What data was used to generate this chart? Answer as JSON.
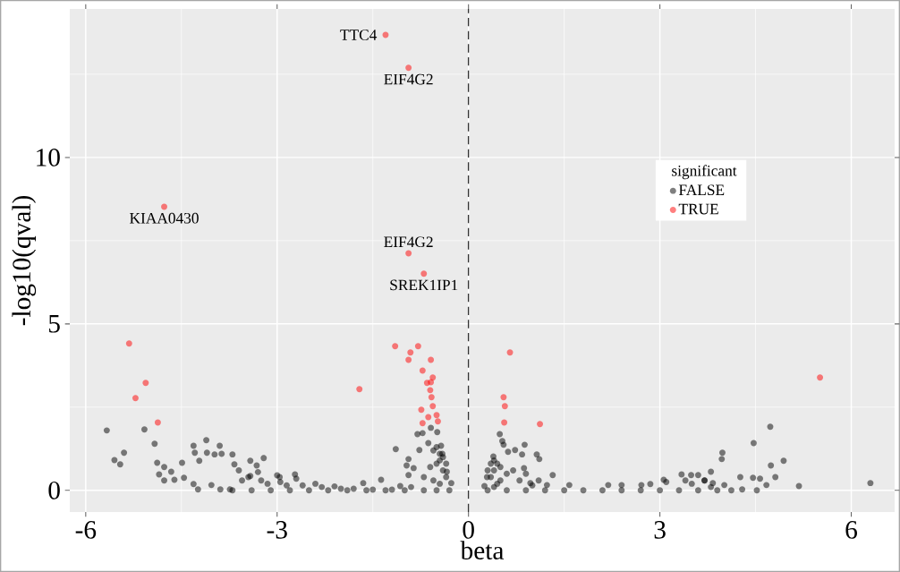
{
  "chart_data": {
    "type": "scatter",
    "xlabel": "beta",
    "ylabel": "-log10(qval)",
    "legend_title": "significant",
    "xlim": [
      -6.25,
      6.68
    ],
    "ylim": [
      -0.65,
      14.46
    ],
    "xticks": [
      -6,
      -3,
      0,
      3,
      6
    ],
    "yticks": [
      0,
      5,
      10
    ],
    "grid": true,
    "legend": "right",
    "marker": "circle",
    "ref_lines": [
      {
        "axis": "x",
        "value": 0,
        "line_style": "dashed",
        "color": "#333333"
      }
    ],
    "annotations": [
      {
        "text": "TTC4",
        "x": -1.3,
        "y": 13.68
      },
      {
        "text": "EIF4G2",
        "x": -0.94,
        "y": 12.69
      },
      {
        "text": "KIAA0430",
        "x": -4.77,
        "y": 8.52
      },
      {
        "text": "EIF4G2",
        "x": -0.94,
        "y": 7.12
      },
      {
        "text": "SREK1IP1",
        "x": -0.7,
        "y": 6.51
      }
    ],
    "series": [
      {
        "name": "FALSE",
        "color": "#000000",
        "x": [
          -5.67,
          -5.55,
          -5.46,
          -5.4,
          -5.08,
          -4.92,
          -4.88,
          -4.77,
          -4.85,
          -4.77,
          -4.66,
          -4.61,
          -4.49,
          -4.46,
          -4.31,
          -4.11,
          -3.9,
          -4.29,
          -4.22,
          -4.1,
          -3.98,
          -3.87,
          -3.7,
          -3.67,
          -4.31,
          -4.24,
          -3.89,
          -4.03,
          -3.42,
          -3.21,
          -3.32,
          -2.96,
          -2.72,
          -3.42,
          -3.74,
          -3.6,
          -3.3,
          -3.0,
          -2.7,
          -2.4,
          -2.1,
          -1.8,
          -1.5,
          -1.2,
          -0.9,
          -3.7,
          -3.4,
          -3.1,
          -2.8,
          -2.5,
          -2.2,
          -1.9,
          -1.6,
          -1.3,
          -1.0,
          -0.7,
          -0.5,
          -0.3,
          -1.65,
          -1.37,
          -1.14,
          -0.8,
          -0.72,
          -0.59,
          -0.49,
          -0.63,
          -0.43,
          -0.77,
          -0.94,
          -0.97,
          -0.94,
          -0.86,
          -0.41,
          -0.34,
          -0.27,
          -1.07,
          -0.35,
          -0.4,
          -0.45,
          -0.5,
          -0.6,
          -0.7,
          0.3,
          0.35,
          0.4,
          0.5,
          0.6,
          0.8,
          1.0,
          0.49,
          0.53,
          0.55,
          0.39,
          0.29,
          0.25,
          0.62,
          0.73,
          0.88,
          0.84,
          0.87,
          1.07,
          1.11,
          1.32,
          0.97,
          1.23,
          1.58,
          2.19,
          2.4,
          2.71,
          2.85,
          3.06,
          3.34,
          3.49,
          3.6,
          3.8,
          3.98,
          3.97,
          3.83,
          4.01,
          4.12,
          4.26,
          4.46,
          4.47,
          4.74,
          4.73,
          4.94,
          4.81,
          4.57,
          4.52,
          4.29,
          5.18,
          6.3,
          4.67,
          0.3,
          0.6,
          0.9,
          1.2,
          1.5,
          1.8,
          2.1,
          2.4,
          2.7,
          3.0,
          3.3,
          3.6,
          3.9,
          3.1,
          3.4,
          3.7,
          -3.55,
          -3.45,
          -3.25,
          -3.15,
          -2.95,
          -2.85,
          -2.6,
          -2.3,
          -2.0,
          -0.55,
          -0.5,
          -0.45,
          -0.4,
          -0.35,
          -0.55,
          -0.45,
          0.35,
          0.4,
          0.45,
          0.5,
          0.45,
          0.4,
          0.7,
          0.9,
          1.1,
          3.5,
          3.7,
          3.8
        ],
        "values": [
          1.8,
          0.91,
          0.78,
          1.13,
          1.83,
          1.4,
          0.83,
          0.7,
          0.48,
          0.3,
          0.56,
          0.32,
          0.83,
          0.38,
          1.34,
          1.51,
          1.34,
          1.13,
          0.89,
          1.13,
          1.08,
          1.1,
          1.08,
          0.78,
          0.19,
          0.03,
          0.03,
          0.16,
          0.89,
          0.97,
          0.75,
          0.4,
          0.48,
          0.43,
          0.03,
          0.6,
          0.55,
          0.45,
          0.35,
          0.2,
          0.12,
          0.05,
          0.02,
          0.02,
          0.1,
          0,
          0,
          0,
          0,
          0,
          0,
          0,
          0,
          0,
          0,
          0,
          0,
          0,
          0.22,
          0.32,
          1.24,
          1.69,
          1.72,
          1.88,
          1.75,
          1.42,
          1.34,
          1.21,
          0.94,
          0.75,
          0.46,
          0.67,
          1.1,
          0.56,
          0.22,
          0.13,
          0.8,
          1.0,
          0.9,
          0.8,
          0.7,
          0.4,
          0.6,
          0.8,
          0.9,
          0.7,
          0.5,
          0.3,
          0.15,
          1.69,
          1.48,
          1.37,
          1.02,
          0.4,
          0.13,
          1.16,
          1.21,
          1.37,
          1.08,
          0.67,
          1.08,
          0.94,
          0.46,
          0.22,
          0.16,
          0.16,
          0.16,
          0.16,
          0.16,
          0.19,
          0.32,
          0.48,
          0.46,
          0.46,
          0.56,
          1.13,
          0.94,
          0.22,
          0.16,
          0,
          0.4,
          0.38,
          1.42,
          0.75,
          1.91,
          0.89,
          0.4,
          0.35,
          0,
          0.03,
          0.13,
          0.22,
          0.16,
          0,
          0,
          0,
          0,
          0,
          0,
          0,
          0,
          0,
          0,
          0,
          0,
          0,
          0.25,
          0.3,
          0.3,
          0.3,
          0.4,
          0.3,
          0.2,
          0.25,
          0.15,
          0.15,
          0.1,
          0.05,
          1.2,
          1.3,
          1.1,
          0.6,
          0.4,
          0.3,
          0.2,
          0.4,
          0.6,
          0.8,
          0.3,
          0.2,
          0.1,
          0.6,
          0.5,
          0.3,
          0.2,
          0.3,
          0.1
        ]
      },
      {
        "name": "TRUE",
        "color": "#ff0000",
        "x": [
          -1.3,
          -0.94,
          -4.77,
          -0.94,
          -0.7,
          -5.32,
          -5.06,
          -5.22,
          -4.87,
          -1.71,
          -1.15,
          -0.91,
          -0.79,
          -0.94,
          -0.59,
          -0.72,
          -0.56,
          -0.65,
          -0.59,
          -0.6,
          -0.58,
          -0.56,
          -0.74,
          -0.63,
          -0.5,
          -0.48,
          -0.72,
          0.65,
          0.55,
          0.57,
          0.56,
          1.12,
          5.51
        ],
        "values": [
          13.68,
          12.69,
          8.52,
          7.12,
          6.51,
          4.41,
          3.23,
          2.77,
          2.04,
          3.04,
          4.33,
          4.14,
          4.33,
          3.92,
          3.92,
          3.6,
          3.39,
          3.23,
          3.25,
          3.01,
          2.8,
          2.53,
          2.42,
          2.2,
          2.26,
          2.07,
          2.02,
          4.14,
          2.8,
          2.53,
          2.04,
          1.99,
          3.39
        ]
      }
    ]
  }
}
